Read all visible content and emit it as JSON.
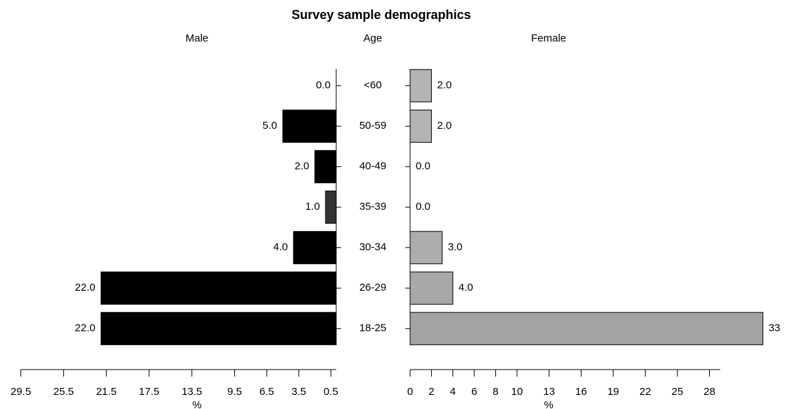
{
  "chart_data": {
    "type": "pyramid",
    "title": "Survey sample demographics",
    "center_label": "Age",
    "categories": [
      "<60",
      "50-59",
      "40-49",
      "35-39",
      "30-34",
      "26-29",
      "18-25"
    ],
    "series": [
      {
        "name": "Male",
        "colors": [
          "#000000",
          "#000000",
          "#000000",
          "#333333",
          "#000000",
          "#000000",
          "#000000"
        ],
        "values": [
          0,
          5,
          2,
          1,
          4,
          22,
          22
        ],
        "value_labels": [
          "0.0",
          "5.0",
          "2.0",
          "1.0",
          "4.0",
          "22.0",
          "22.0"
        ],
        "xlim": [
          0,
          29.5
        ],
        "xticks": [
          29.5,
          25.5,
          21.5,
          17.5,
          13.5,
          9.5,
          6.5,
          3.5,
          0.5
        ],
        "xlabel": "%"
      },
      {
        "name": "Female",
        "colors": [
          "#b3b3b3",
          "#b3b3b3",
          "#b3b3b3",
          "#b3b3b3",
          "#adadad",
          "#a8a8a8",
          "#a3a3a3"
        ],
        "values": [
          2,
          2,
          0,
          0,
          3,
          4,
          33
        ],
        "value_labels": [
          "2.0",
          "2.0",
          "0.0",
          "0.0",
          "3.0",
          "4.0",
          "33"
        ],
        "xlim": [
          0,
          29
        ],
        "xticks": [
          0,
          2,
          4,
          6,
          8,
          10,
          13,
          16,
          19,
          22,
          25,
          28
        ],
        "xlabel": "%"
      }
    ]
  }
}
